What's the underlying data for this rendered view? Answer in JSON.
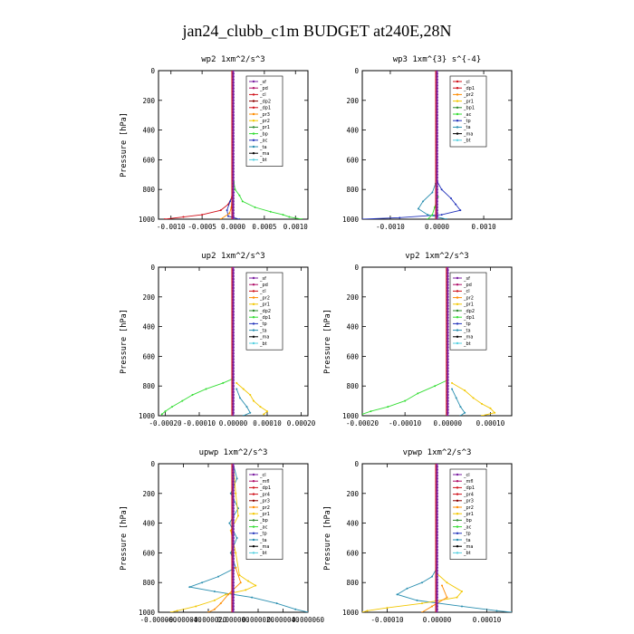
{
  "figure": {
    "title": "jan24_clubb_c1m  BUDGET at240E,28N"
  },
  "colors": {
    "purple": "#7b1fa2",
    "magenta": "#b0106a",
    "red": "#d0101a",
    "darkred": "#8b0000",
    "orange": "#ff8c00",
    "yellow": "#f2c700",
    "green": "#2e8b2e",
    "lime": "#33dd33",
    "blue": "#2233bb",
    "teal": "#2a8fb0",
    "black": "#000000",
    "cyan": "#55d0e0"
  },
  "chart_data": [
    {
      "type": "line",
      "title": "wp2  1xm^2/s^3",
      "ylabel": "Pressure [hPa]",
      "xlim": [
        -0.0012,
        0.0012
      ],
      "ylim": [
        1000,
        0
      ],
      "xticks": [
        -0.001,
        -0.0005,
        0,
        0.0005,
        0.001
      ],
      "xtick_labels": [
        "-0.0010",
        "-0.0005",
        "0.0000",
        "0.0005",
        "0.0010"
      ],
      "yticks": [
        0,
        200,
        400,
        600,
        800,
        1000
      ],
      "legend": [
        "_sf",
        "_pd",
        "_cl",
        "_dp2",
        "_dp1",
        "_pr3",
        "_pr2",
        "_pr1",
        "_bp",
        "_ac",
        "_ta",
        "_ma",
        "_bt"
      ],
      "legend_colors": [
        "purple",
        "magenta",
        "red",
        "darkred",
        "red",
        "orange",
        "yellow",
        "green",
        "lime",
        "blue",
        "teal",
        "black",
        "cyan"
      ],
      "series": [
        {
          "color": "lime",
          "pressure": [
            750,
            800,
            840,
            880,
            920,
            950,
            970,
            985,
            1000
          ],
          "values": [
            1e-05,
            3e-05,
            0.0001,
            0.00015,
            0.00035,
            0.0006,
            0.0008,
            0.0009,
            0.0011
          ]
        },
        {
          "color": "red",
          "pressure": [
            850,
            900,
            940,
            970,
            985,
            1000
          ],
          "values": [
            -2e-05,
            -8e-05,
            -0.0002,
            -0.0005,
            -0.0008,
            -0.0011
          ]
        },
        {
          "color": "blue",
          "pressure": [
            820,
            880,
            940,
            980,
            1000
          ],
          "values": [
            1e-05,
            -5e-05,
            -0.0001,
            -8e-05,
            0.0001
          ]
        },
        {
          "color": "orange",
          "pressure": [
            860,
            920,
            960,
            1000
          ],
          "values": [
            -2e-05,
            -3e-05,
            -6e-05,
            -0.0002
          ]
        },
        {
          "color": "purple",
          "pressure": [
            0,
            300,
            600,
            800,
            900,
            1000
          ],
          "values": [
            0,
            0,
            0,
            0,
            0,
            0
          ]
        }
      ]
    },
    {
      "type": "line",
      "title": "wp3  1xm^{3} s^{-4}",
      "ylabel": "",
      "xlim": [
        -0.0016,
        0.0016
      ],
      "ylim": [
        1000,
        0
      ],
      "xticks": [
        -0.001,
        0,
        0.001
      ],
      "xtick_labels": [
        "-0.0010",
        "0.0000",
        "0.0010"
      ],
      "yticks": [
        0,
        200,
        400,
        600,
        800,
        1000
      ],
      "legend": [
        "_cl",
        "_dp1",
        "_pr2",
        "_pr1",
        "_bp1",
        "_ac",
        "_tp",
        "_ta",
        "_ma",
        "_bt"
      ],
      "legend_colors": [
        "red",
        "red",
        "orange",
        "yellow",
        "green",
        "lime",
        "blue",
        "teal",
        "black",
        "cyan"
      ],
      "series": [
        {
          "color": "blue",
          "pressure": [
            750,
            800,
            860,
            900,
            940,
            970,
            990,
            1000
          ],
          "values": [
            1e-05,
            0.0001,
            0.0003,
            0.0004,
            0.0005,
            0.0001,
            -0.0008,
            -0.0016
          ]
        },
        {
          "color": "teal",
          "pressure": [
            760,
            820,
            880,
            930,
            970,
            1000
          ],
          "values": [
            -3e-05,
            -0.0001,
            -0.0003,
            -0.0004,
            -0.0002,
            0.0002
          ]
        },
        {
          "color": "lime",
          "pressure": [
            850,
            920,
            970,
            1000
          ],
          "values": [
            2e-05,
            -5e-05,
            -0.0001,
            -0.0002
          ]
        },
        {
          "color": "purple",
          "pressure": [
            0,
            300,
            600,
            800,
            900,
            1000
          ],
          "values": [
            0,
            0,
            0,
            0,
            0,
            0
          ]
        }
      ]
    },
    {
      "type": "line",
      "title": "up2  1xm^2/s^3",
      "ylabel": "Pressure [hPa]",
      "xlim": [
        -0.00022,
        0.00022
      ],
      "ylim": [
        1000,
        0
      ],
      "xticks": [
        -0.0002,
        -0.0001,
        0,
        0.0001,
        0.0002
      ],
      "xtick_labels": [
        "-0.00020",
        "-0.00010",
        "0.00000",
        "0.00010",
        "0.00020"
      ],
      "yticks": [
        0,
        200,
        400,
        600,
        800,
        1000
      ],
      "legend": [
        "_sf",
        "_pd",
        "_cl",
        "_pr2",
        "_pr1",
        "_dp2",
        "_dp1",
        "_tp",
        "_ta",
        "_ma",
        "_bt"
      ],
      "legend_colors": [
        "purple",
        "magenta",
        "red",
        "orange",
        "yellow",
        "green",
        "lime",
        "blue",
        "teal",
        "black",
        "cyan"
      ],
      "series": [
        {
          "color": "lime",
          "pressure": [
            750,
            780,
            820,
            860,
            900,
            940,
            970,
            990
          ],
          "values": [
            0,
            -3e-05,
            -8e-05,
            -0.00012,
            -0.00015,
            -0.00018,
            -0.0002,
            -0.00021
          ]
        },
        {
          "color": "yellow",
          "pressure": [
            780,
            820,
            860,
            900,
            940,
            970,
            990
          ],
          "values": [
            1e-05,
            3e-05,
            5e-05,
            6e-05,
            8e-05,
            0.0001,
            9e-05
          ]
        },
        {
          "color": "teal",
          "pressure": [
            820,
            880,
            940,
            980,
            1000
          ],
          "values": [
            1e-05,
            2e-05,
            4e-05,
            5e-05,
            3e-05
          ]
        },
        {
          "color": "purple",
          "pressure": [
            0,
            300,
            600,
            800,
            900,
            1000
          ],
          "values": [
            0,
            0,
            0,
            0,
            0,
            0
          ]
        }
      ]
    },
    {
      "type": "line",
      "title": "vp2  1xm^2/s^3",
      "ylabel": "Pressure [hPa]",
      "xlim": [
        -0.0002,
        0.00015
      ],
      "ylim": [
        1000,
        0
      ],
      "xticks": [
        -0.0002,
        -0.0001,
        0,
        0.0001
      ],
      "xtick_labels": [
        "-0.00020",
        "-0.00010",
        "0.00000",
        "0.00010"
      ],
      "yticks": [
        0,
        200,
        400,
        600,
        800,
        1000
      ],
      "legend": [
        "_sf",
        "_pd",
        "_cl",
        "_pr2",
        "_pr1",
        "_dp2",
        "_dp1",
        "_tp",
        "_ta",
        "_ma",
        "_bt"
      ],
      "legend_colors": [
        "purple",
        "magenta",
        "red",
        "orange",
        "yellow",
        "green",
        "lime",
        "blue",
        "teal",
        "black",
        "cyan"
      ],
      "series": [
        {
          "color": "lime",
          "pressure": [
            760,
            800,
            850,
            900,
            940,
            970,
            990
          ],
          "values": [
            0,
            -3e-05,
            -7e-05,
            -0.0001,
            -0.00014,
            -0.00018,
            -0.0002
          ]
        },
        {
          "color": "yellow",
          "pressure": [
            780,
            830,
            880,
            920,
            950,
            980,
            1000
          ],
          "values": [
            1e-05,
            4e-05,
            6e-05,
            8e-05,
            0.0001,
            0.00011,
            8e-05
          ]
        },
        {
          "color": "teal",
          "pressure": [
            820,
            880,
            940,
            980,
            1000
          ],
          "values": [
            1e-05,
            2e-05,
            3e-05,
            4e-05,
            3e-05
          ]
        },
        {
          "color": "purple",
          "pressure": [
            0,
            300,
            600,
            800,
            900,
            1000
          ],
          "values": [
            0,
            0,
            0,
            0,
            0,
            0
          ]
        }
      ]
    },
    {
      "type": "line",
      "title": "upwp  1xm^2/s^3",
      "ylabel": "Pressure [hPa]",
      "xlim": [
        -6e-05,
        6e-05
      ],
      "ylim": [
        1000,
        0
      ],
      "xticks": [
        -6e-05,
        -4e-05,
        -2e-05,
        0,
        2e-05,
        4e-05,
        6e-05
      ],
      "xtick_labels": [
        "-0.000060",
        "-0.000040",
        "-0.000020",
        "0.000000",
        "0.000020",
        "0.000040",
        "0.000060"
      ],
      "yticks": [
        0,
        200,
        400,
        600,
        800,
        1000
      ],
      "legend": [
        "_cl",
        "_mfl",
        "_dp1",
        "_pr4",
        "_pr3",
        "_pr2",
        "_pr1",
        "_bp",
        "_ac",
        "_tp",
        "_ta",
        "_ma",
        "_bt"
      ],
      "legend_colors": [
        "purple",
        "magenta",
        "red",
        "red",
        "darkred",
        "orange",
        "yellow",
        "green",
        "lime",
        "blue",
        "teal",
        "black",
        "cyan"
      ],
      "series": [
        {
          "color": "teal",
          "pressure": [
            0,
            100,
            200,
            300,
            400,
            500,
            600,
            700,
            760,
            800,
            830,
            860,
            900,
            940,
            980,
            1000
          ],
          "values": [
            0,
            3e-06,
            -2e-06,
            4e-06,
            -3e-06,
            3e-06,
            -2e-06,
            2e-06,
            -1.2e-05,
            -2.5e-05,
            -3.5e-05,
            -1.5e-05,
            1.5e-05,
            3.5e-05,
            5e-05,
            6e-05
          ]
        },
        {
          "color": "yellow",
          "pressure": [
            0,
            200,
            350,
            450,
            600,
            750,
            790,
            820,
            850,
            880,
            920,
            960,
            990,
            1000
          ],
          "values": [
            0,
            2e-06,
            4e-06,
            -2e-06,
            2e-06,
            5e-06,
            1.2e-05,
            1.8e-05,
            1e-05,
            -6e-06,
            -1.5e-05,
            -3e-05,
            -4.5e-05,
            -5e-05
          ]
        },
        {
          "color": "orange",
          "pressure": [
            700,
            800,
            880,
            940,
            980,
            1000
          ],
          "values": [
            2e-06,
            6e-06,
            -4e-06,
            -1e-05,
            -1.5e-05,
            -2e-05
          ]
        },
        {
          "color": "purple",
          "pressure": [
            0,
            300,
            600,
            800,
            900,
            1000
          ],
          "values": [
            0,
            0,
            0,
            0,
            0,
            0
          ]
        }
      ]
    },
    {
      "type": "line",
      "title": "vpwp  1xm^2/s^3",
      "ylabel": "Pressure [hPa]",
      "xlim": [
        -0.00015,
        0.00015
      ],
      "ylim": [
        1000,
        0
      ],
      "xticks": [
        -0.0001,
        0,
        0.0001
      ],
      "xtick_labels": [
        "-0.00010",
        "0.00000",
        "0.00010"
      ],
      "yticks": [
        0,
        200,
        400,
        600,
        800,
        1000
      ],
      "legend": [
        "_cl",
        "_mfl",
        "_dp1",
        "_pr4",
        "_pr3",
        "_pr2",
        "_pr1",
        "_bp",
        "_ac",
        "_tp",
        "_ta",
        "_ma",
        "_bt"
      ],
      "legend_colors": [
        "purple",
        "magenta",
        "red",
        "red",
        "darkred",
        "orange",
        "yellow",
        "green",
        "lime",
        "blue",
        "teal",
        "black",
        "cyan"
      ],
      "series": [
        {
          "color": "teal",
          "pressure": [
            700,
            760,
            800,
            840,
            880,
            920,
            960,
            990,
            1000
          ],
          "values": [
            0,
            -1e-05,
            -3e-05,
            -6e-05,
            -8e-05,
            -4e-05,
            5e-05,
            0.00012,
            0.00015
          ]
        },
        {
          "color": "yellow",
          "pressure": [
            740,
            800,
            860,
            900,
            940,
            970,
            990,
            1000
          ],
          "values": [
            0,
            2e-05,
            5e-05,
            4e-05,
            -3e-05,
            -0.0001,
            -0.00014,
            -0.00015
          ]
        },
        {
          "color": "orange",
          "pressure": [
            820,
            900,
            960,
            1000
          ],
          "values": [
            1e-05,
            2e-05,
            -1e-05,
            -3e-05
          ]
        },
        {
          "color": "purple",
          "pressure": [
            0,
            300,
            600,
            800,
            900,
            1000
          ],
          "values": [
            0,
            0,
            0,
            0,
            0,
            0
          ]
        }
      ]
    }
  ]
}
